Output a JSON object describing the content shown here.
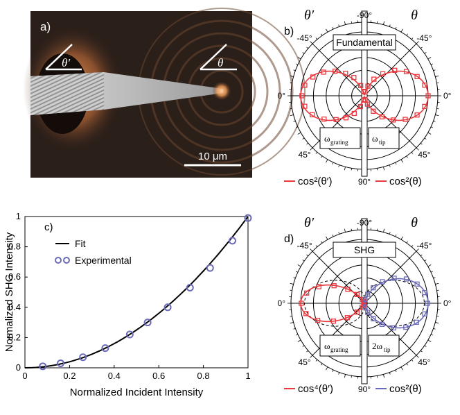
{
  "panel_a": {
    "label": "a)",
    "angle_left": "θ′",
    "angle_right": "θ",
    "scale_bar": "10 μm"
  },
  "panel_b": {
    "label": "b)",
    "theta_prime": "θ′",
    "theta": "θ",
    "box_title": "Fundamental",
    "box_left": "ω",
    "box_left_sub": "grating",
    "box_right": "ω",
    "box_right_sub": "tip",
    "ticks": {
      "top": "-90°",
      "ul": "-45°",
      "ur": "-45°",
      "left": "0°",
      "right": "0°",
      "ll": "45°",
      "lr": "45°",
      "bottom": "90°"
    },
    "legend_left": "cos²(θ′)",
    "legend_right": "cos²(θ)"
  },
  "panel_d": {
    "label": "d)",
    "theta_prime": "θ′",
    "theta": "θ",
    "box_title": "SHG",
    "box_left": "ω",
    "box_left_sub": "grating",
    "box_right": "2ω",
    "box_right_sub": "tip",
    "ticks": {
      "top": "-90°",
      "ul": "-45°",
      "ur": "-45°",
      "left": "0°",
      "right": "0°",
      "ll": "45°",
      "lr": "45°",
      "bottom": "90°"
    },
    "legend_left": "cos⁴(θ′)",
    "legend_right": "cos²(θ)"
  },
  "colors": {
    "red": "#e8393f",
    "blue": "#6a6ab8",
    "black": "#000000"
  },
  "chart_data": [
    {
      "type": "scatter",
      "panel": "c)",
      "title": "",
      "xlabel": "Normalized Incident Intensity",
      "ylabel": "Normalized SHG Intensity",
      "xlim": [
        0,
        1
      ],
      "ylim": [
        0,
        1
      ],
      "xticks": [
        "0",
        "0.2",
        "0.4",
        "0.6",
        "0.8",
        "1"
      ],
      "yticks": [
        "0",
        "0.2",
        "0.4",
        "0.6",
        "0.8",
        "1"
      ],
      "legend": [
        "Fit",
        "Experimental"
      ],
      "series": [
        {
          "name": "Experimental",
          "x": [
            0.08,
            0.16,
            0.26,
            0.36,
            0.47,
            0.55,
            0.64,
            0.74,
            0.83,
            0.93,
            1.0
          ],
          "y": [
            0.01,
            0.03,
            0.07,
            0.13,
            0.22,
            0.3,
            0.4,
            0.53,
            0.66,
            0.84,
            0.99
          ]
        },
        {
          "name": "Fit",
          "model": "y = x^2",
          "x": [
            0,
            1
          ]
        }
      ]
    },
    {
      "type": "polar",
      "panel": "b)",
      "series": [
        {
          "name": "cos²(θ′)",
          "side": "left",
          "angles_deg": [
            -80,
            -70,
            -60,
            -50,
            -40,
            -30,
            -20,
            -10,
            0,
            10,
            20,
            30,
            40,
            50,
            60,
            70,
            80
          ],
          "r": [
            0.07,
            0.17,
            0.33,
            0.46,
            0.6,
            0.74,
            0.86,
            0.95,
            0.98,
            0.95,
            0.87,
            0.73,
            0.58,
            0.45,
            0.32,
            0.18,
            0.07
          ]
        },
        {
          "name": "cos²(θ)",
          "side": "right",
          "angles_deg": [
            -80,
            -70,
            -60,
            -50,
            -40,
            -30,
            -20,
            -10,
            0,
            10,
            20,
            30,
            40,
            50,
            60,
            70,
            80
          ],
          "r": [
            0.06,
            0.16,
            0.3,
            0.45,
            0.62,
            0.76,
            0.88,
            0.96,
            1.0,
            0.96,
            0.88,
            0.74,
            0.59,
            0.43,
            0.28,
            0.14,
            0.06
          ]
        }
      ]
    },
    {
      "type": "polar",
      "panel": "d)",
      "series": [
        {
          "name": "cos⁴(θ′)",
          "side": "left",
          "angles_deg": [
            -80,
            -70,
            -60,
            -50,
            -40,
            -30,
            -20,
            -10,
            0,
            10,
            20,
            30,
            40,
            50,
            60,
            70,
            80
          ],
          "r": [
            0.02,
            0.03,
            0.07,
            0.18,
            0.34,
            0.55,
            0.76,
            0.92,
            0.99,
            0.93,
            0.78,
            0.56,
            0.35,
            0.18,
            0.07,
            0.03,
            0.02
          ]
        },
        {
          "name": "cos²(θ)",
          "side": "right",
          "angles_deg": [
            -80,
            -70,
            -60,
            -50,
            -40,
            -30,
            -20,
            -10,
            0,
            10,
            20,
            30,
            40,
            50,
            60,
            70,
            80
          ],
          "r": [
            0.06,
            0.15,
            0.28,
            0.44,
            0.61,
            0.76,
            0.88,
            0.96,
            0.99,
            0.96,
            0.87,
            0.75,
            0.6,
            0.43,
            0.28,
            0.15,
            0.06
          ]
        }
      ]
    }
  ]
}
